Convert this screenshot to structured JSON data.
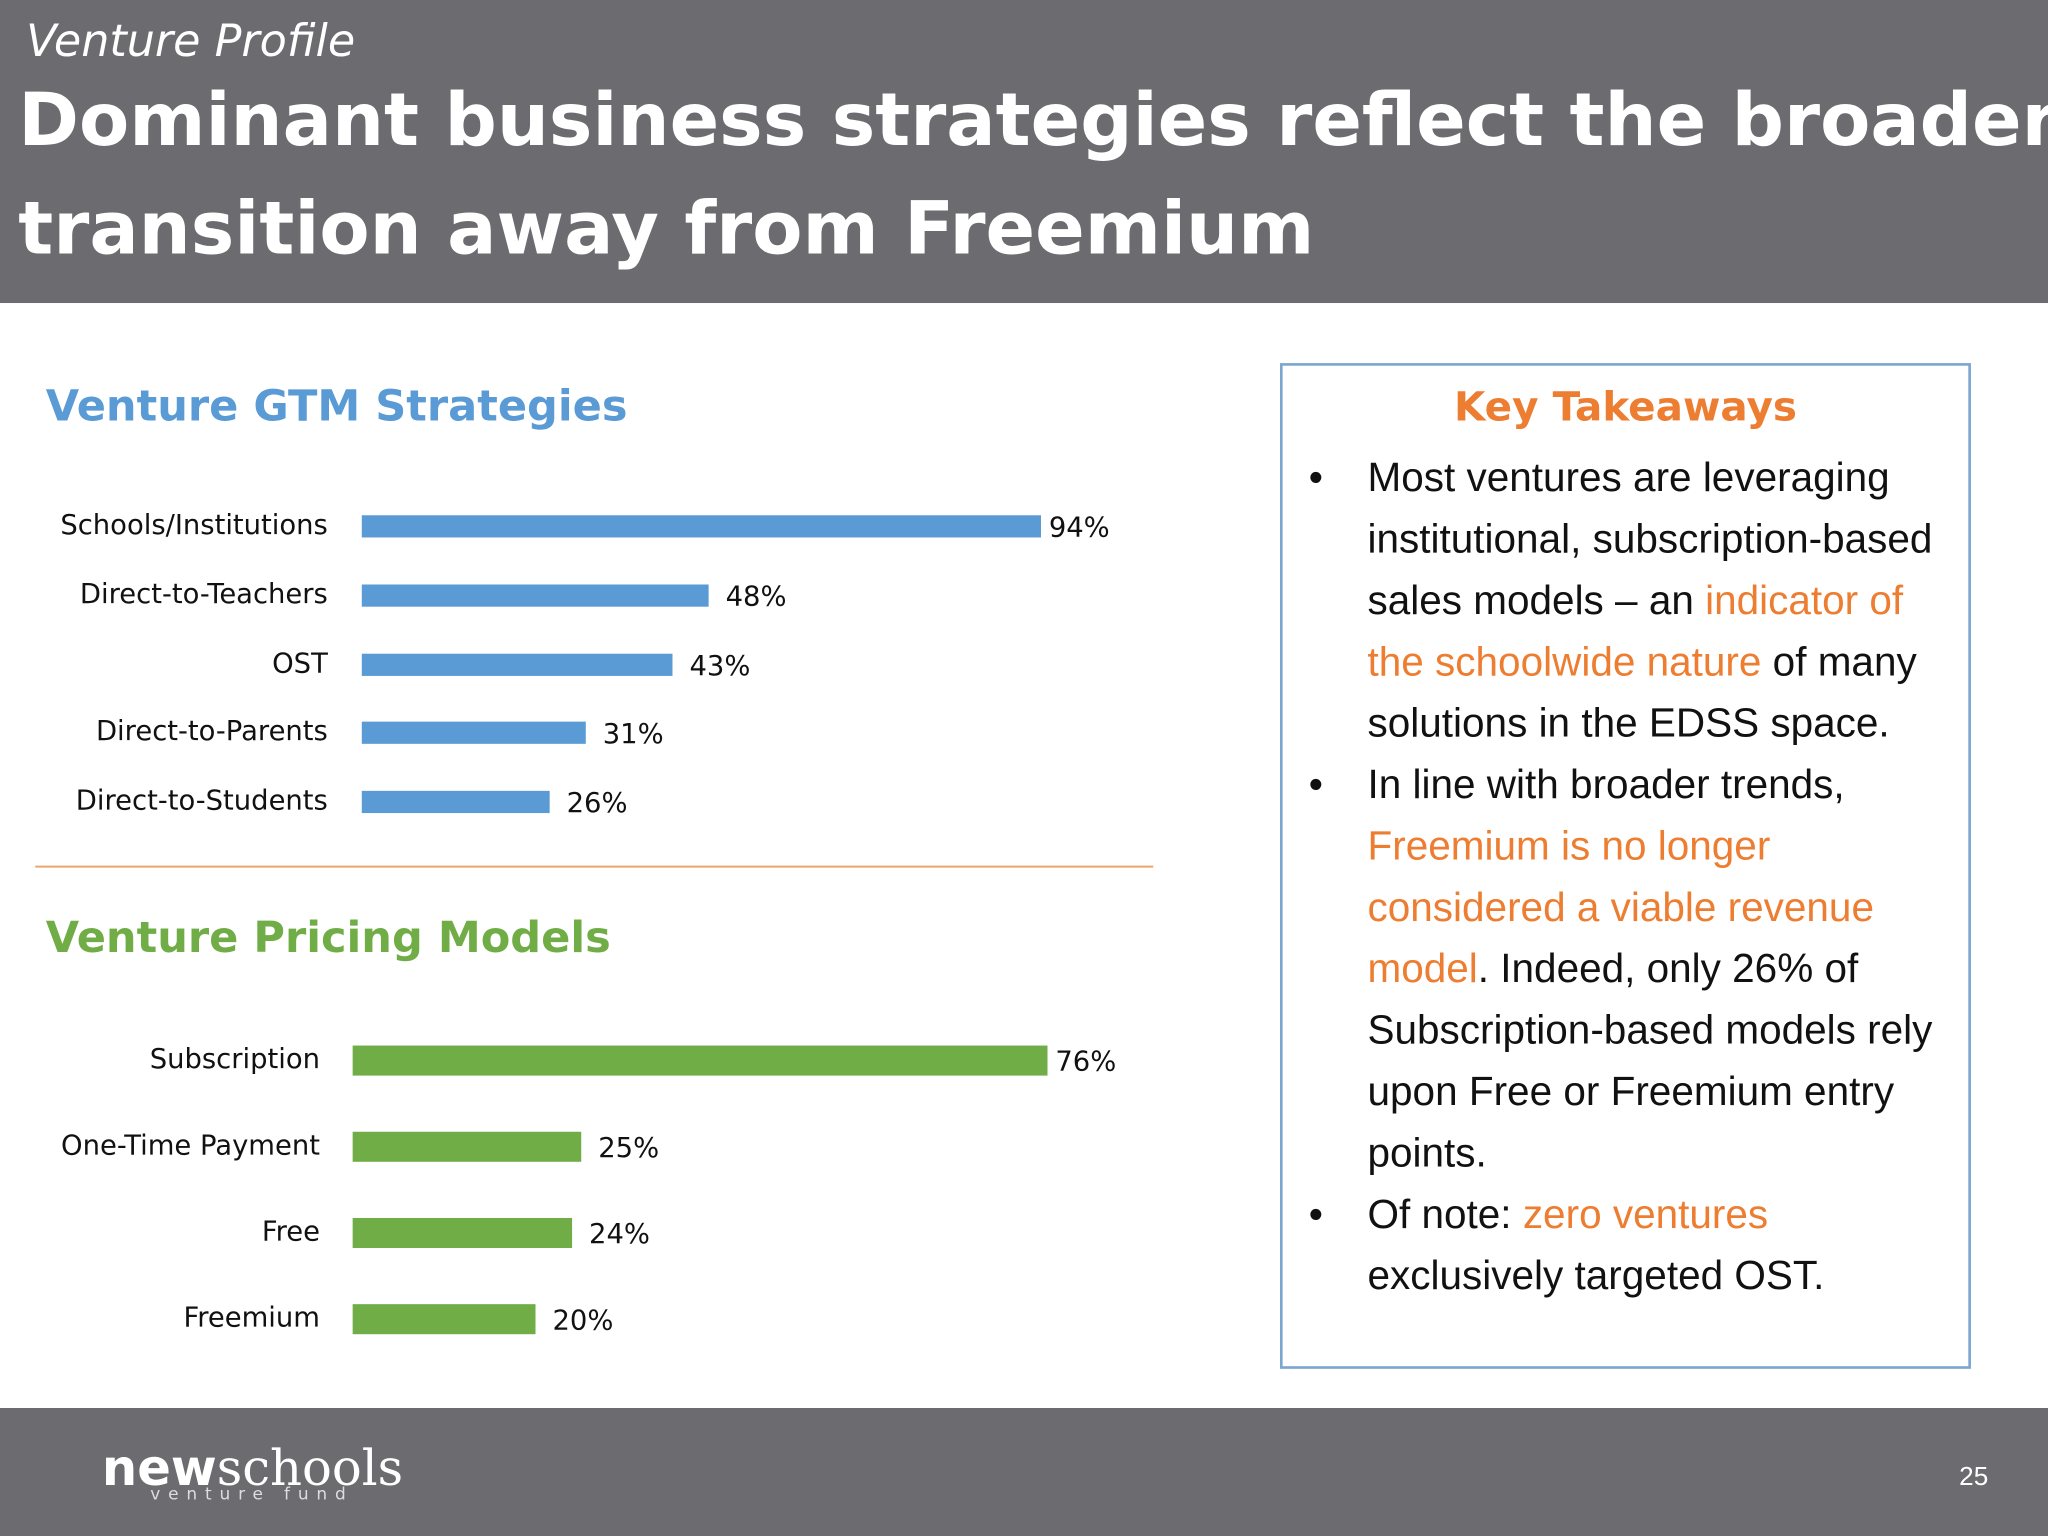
{
  "header": {
    "kicker": "Venture Profile",
    "title_lines": [
      "Dominant business strategies reflect the broader",
      "transition away from Freemium"
    ]
  },
  "chart_data": [
    {
      "type": "bar",
      "orientation": "horizontal",
      "title": "Venture GTM Strategies",
      "title_color": "#5b9bd5",
      "categories": [
        "Schools/Institutions",
        "Direct-to-Teachers",
        "OST",
        "Direct-to-Parents",
        "Direct-to-Students"
      ],
      "values": [
        94,
        48,
        43,
        31,
        26
      ],
      "value_labels": [
        "94%",
        "48%",
        "43%",
        "31%",
        "26%"
      ],
      "color": "#5b9bd5"
    },
    {
      "type": "bar",
      "orientation": "horizontal",
      "title": "Venture Pricing Models",
      "title_color": "#70ad47",
      "categories": [
        "Subscription",
        "One-Time Payment",
        "Free",
        "Freemium"
      ],
      "values": [
        76,
        25,
        24,
        20
      ],
      "value_labels": [
        "76%",
        "25%",
        "24%",
        "20%"
      ],
      "color": "#70ad47"
    }
  ],
  "takeaways": {
    "title": "Key Takeaways",
    "highlight_color": "#ed7d31",
    "bullets": [
      [
        {
          "text": "Most ventures are leveraging institutional, subscription-based sales models – an "
        },
        {
          "text": "indicator of the schoolwide nature",
          "highlight": true
        },
        {
          "text": " of many solutions in the EDSS space."
        }
      ],
      [
        {
          "text": "In line with broader trends, "
        },
        {
          "text": "Freemium is no longer considered a viable revenue model",
          "highlight": true
        },
        {
          "text": ". Indeed, only 26% of Subscription-based models rely upon Free or Freemium entry points."
        }
      ],
      [
        {
          "text": "Of note: "
        },
        {
          "text": "zero ventures",
          "highlight": true
        },
        {
          "text": " exclusively targeted OST."
        }
      ]
    ]
  },
  "footer": {
    "logo_bold": "new",
    "logo_rest": "schools",
    "logo_sub": "venture fund",
    "page_number": "25"
  }
}
